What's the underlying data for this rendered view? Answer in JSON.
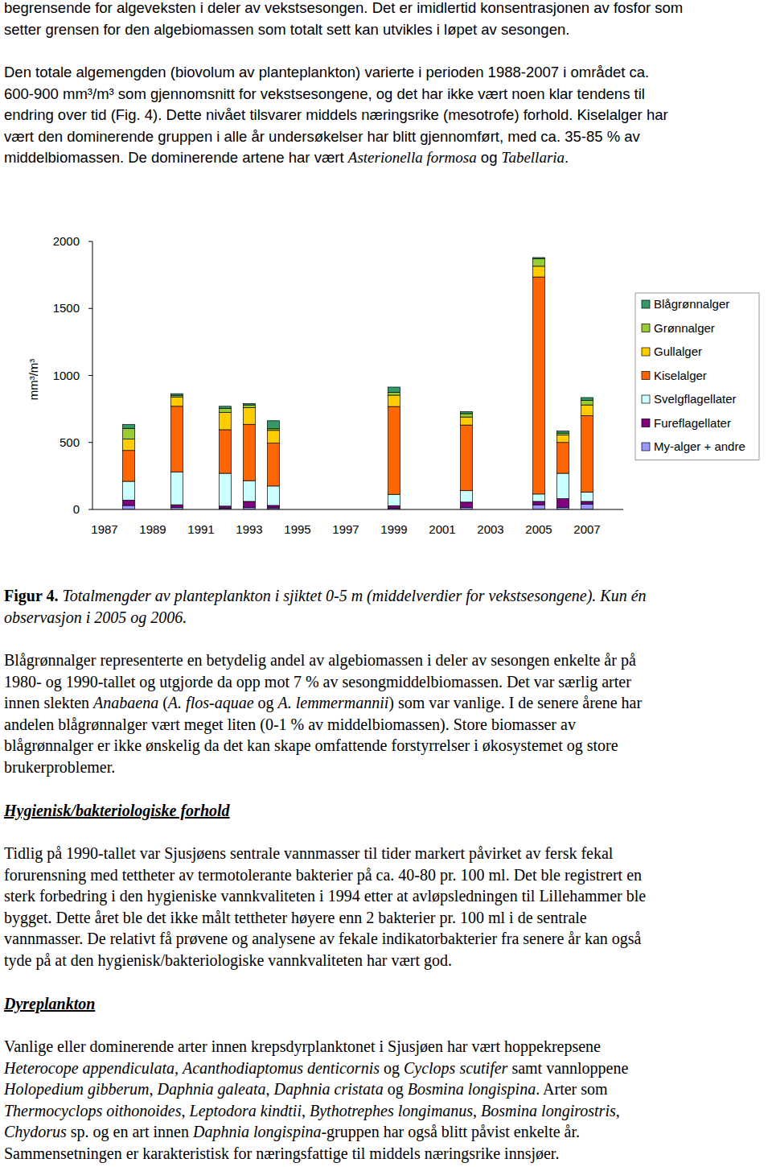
{
  "text_above": [
    {
      "lines": [
        [
          {
            "text": "begrensende for algeveksten i deler av vekstsesongen. Det er imidlertid konsentrasjonen av fosfor som"
          }
        ],
        [
          {
            "text": "setter grensen for den algebiomassen som totalt sett kan utvikles i løpet av sesongen."
          }
        ]
      ]
    },
    {
      "lines": [
        [
          {
            "text": "Den totale algemengden (biovolum av planteplankton) varierte i perioden 1988-2007 i området ca."
          }
        ],
        [
          {
            "text": "600-900 mm³/m³ som gjennomsnitt for vekstsesongene, og det har ikke vært noen klar tendens til"
          }
        ],
        [
          {
            "text": "endring over tid (Fig. 4). Dette nivået tilsvarer middels næringsrike (mesotrofe) forhold. Kiselalger har"
          }
        ],
        [
          {
            "text": "vært den dominerende gruppen i alle år undersøkelser har blitt gjennomført, med ca. 35-85 % av"
          }
        ],
        [
          {
            "text": "middelbiomassen. De dominerende artene har vært "
          },
          {
            "text": "Asterionella formosa",
            "italic": true
          },
          {
            "text": " og "
          },
          {
            "text": "Tabellaria",
            "italic": true
          },
          {
            "text": "."
          }
        ]
      ]
    }
  ],
  "chart_data": {
    "type": "bar",
    "stacked": true,
    "y_label": "mm³/m³",
    "legend": "right",
    "categories": [
      "1987",
      null,
      "1989",
      null,
      "1991",
      null,
      "1993",
      null,
      "1995",
      null,
      "1997",
      null,
      "1999",
      null,
      "2001",
      null,
      "2003",
      null,
      "2005",
      null,
      "2007"
    ],
    "ylim": [
      0,
      2000
    ],
    "yticks": [
      0,
      500,
      1000,
      1500,
      2000
    ],
    "series": [
      {
        "name": "Blågrønnalger",
        "color": "#339966",
        "values": [
          null,
          30,
          null,
          12,
          null,
          15,
          10,
          60,
          null,
          null,
          null,
          null,
          40,
          null,
          null,
          15,
          null,
          null,
          10,
          15,
          20
        ]
      },
      {
        "name": "Grønnalger",
        "color": "#99cc33",
        "values": [
          null,
          80,
          null,
          12,
          null,
          30,
          20,
          12,
          null,
          null,
          null,
          null,
          20,
          null,
          null,
          25,
          null,
          null,
          55,
          15,
          35
        ]
      },
      {
        "name": "Gullalger",
        "color": "#ffcc00",
        "values": [
          null,
          85,
          null,
          70,
          null,
          130,
          125,
          95,
          null,
          null,
          null,
          null,
          85,
          null,
          null,
          60,
          null,
          null,
          80,
          55,
          80
        ]
      },
      {
        "name": "Kiselalger",
        "color": "#ff6600",
        "values": [
          null,
          230,
          null,
          490,
          null,
          325,
          420,
          320,
          null,
          null,
          null,
          null,
          655,
          null,
          null,
          490,
          null,
          null,
          1620,
          230,
          570
        ]
      },
      {
        "name": "Svelgflagellater",
        "color": "#ccffff",
        "values": [
          null,
          140,
          null,
          245,
          null,
          245,
          155,
          145,
          null,
          null,
          null,
          null,
          85,
          null,
          null,
          85,
          null,
          null,
          55,
          190,
          70
        ]
      },
      {
        "name": "Fureflagellater",
        "color": "#800080",
        "values": [
          null,
          40,
          null,
          20,
          null,
          15,
          45,
          18,
          null,
          null,
          null,
          null,
          18,
          null,
          null,
          40,
          null,
          null,
          25,
          65,
          20
        ]
      },
      {
        "name": "My-alger + andre",
        "color": "#9999ff",
        "values": [
          null,
          30,
          null,
          15,
          null,
          10,
          15,
          12,
          null,
          null,
          null,
          null,
          10,
          null,
          null,
          15,
          null,
          null,
          35,
          15,
          40
        ]
      }
    ]
  },
  "text_below": [
    {
      "lines": [
        [
          {
            "text": "Figur 4.",
            "bold": true
          },
          {
            "text": " Totalmengder av planteplankton i sjiktet 0-5 m (middelverdier for vekstsesongene). Kun én",
            "italic": true
          }
        ],
        [
          {
            "text": "observasjon i 2005 og 2006.",
            "italic": true
          }
        ]
      ]
    },
    {
      "lines": [
        [
          {
            "text": "Blågrønnalger representerte en betydelig andel av algebiomassen i deler av sesongen enkelte år på"
          }
        ],
        [
          {
            "text": "1980- og 1990-tallet og utgjorde da opp mot 7 % av sesongmiddelbiomassen. Det var særlig arter"
          }
        ],
        [
          {
            "text": "innen slekten "
          },
          {
            "text": "Anabaena",
            "italic": true
          },
          {
            "text": " ("
          },
          {
            "text": "A. flos-aquae",
            "italic": true
          },
          {
            "text": " og "
          },
          {
            "text": "A. lemmermannii",
            "italic": true
          },
          {
            "text": ") som var vanlige. I de senere årene har"
          }
        ],
        [
          {
            "text": "andelen blågrønnalger vært meget liten (0-1 % av middelbiomassen). Store biomasser av"
          }
        ],
        [
          {
            "text": "blågrønnalger er ikke ønskelig da det kan skape omfattende forstyrrelser i økosystemet og store"
          }
        ],
        [
          {
            "text": "brukerproblemer."
          }
        ]
      ]
    },
    {
      "lines": [
        [
          {
            "text": "Hygienisk/bakteriologiske forhold",
            "bold": true,
            "italic": true,
            "underline": true
          }
        ]
      ]
    },
    {
      "lines": [
        [
          {
            "text": "Tidlig på 1990-tallet var Sjusjøens sentrale vannmasser til tider markert påvirket av fersk fekal"
          }
        ],
        [
          {
            "text": "forurensning med tettheter av termotolerante bakterier på ca. 40-80 pr. 100 ml. Det ble registrert en"
          }
        ],
        [
          {
            "text": "sterk forbedring i den hygieniske vannkvaliteten i 1994 etter at avløpsledningen til Lillehammer ble"
          }
        ],
        [
          {
            "text": "bygget. Dette året ble det ikke målt tettheter høyere enn 2 bakterier pr. 100 ml i de sentrale"
          }
        ],
        [
          {
            "text": "vannmasser. De relativt få prøvene og analysene av fekale indikatorbakterier fra senere år kan også"
          }
        ],
        [
          {
            "text": "tyde på at den hygienisk/bakteriologiske vannkvaliteten har vært god."
          }
        ]
      ]
    },
    {
      "lines": [
        [
          {
            "text": "Dyreplankton",
            "bold": true,
            "italic": true,
            "underline": true
          }
        ]
      ]
    },
    {
      "lines": [
        [
          {
            "text": "Vanlige eller dominerende arter innen krepsdyrplanktonet i Sjusjøen har vært hoppekrepsene"
          }
        ],
        [
          {
            "text": "Heterocope appendiculata",
            "italic": true
          },
          {
            "text": ", "
          },
          {
            "text": "Acanthodiaptomus denticornis",
            "italic": true
          },
          {
            "text": " og "
          },
          {
            "text": "Cyclops scutifer",
            "italic": true
          },
          {
            "text": " samt vannloppene"
          }
        ],
        [
          {
            "text": "Holopedium gibberum",
            "italic": true
          },
          {
            "text": ", "
          },
          {
            "text": "Daphnia galeata",
            "italic": true
          },
          {
            "text": ", "
          },
          {
            "text": "Daphnia cristata",
            "italic": true
          },
          {
            "text": " og "
          },
          {
            "text": "Bosmina longispina",
            "italic": true
          },
          {
            "text": ". Arter som"
          }
        ],
        [
          {
            "text": "Thermocyclops oithonoides",
            "italic": true
          },
          {
            "text": ", "
          },
          {
            "text": "Leptodora kindtii",
            "italic": true
          },
          {
            "text": ", "
          },
          {
            "text": "Bythotrephes longimanus",
            "italic": true
          },
          {
            "text": ", "
          },
          {
            "text": "Bosmina longirostris",
            "italic": true
          },
          {
            "text": ","
          }
        ],
        [
          {
            "text": "Chydorus",
            "italic": true
          },
          {
            "text": " sp. og en art innen "
          },
          {
            "text": "Daphnia longispina",
            "italic": true
          },
          {
            "text": "-gruppen har også blitt påvist enkelte år."
          }
        ],
        [
          {
            "text": "Sammensetningen er karakteristisk for næringsfattige til middels næringsrike innsjøer."
          }
        ]
      ]
    }
  ]
}
